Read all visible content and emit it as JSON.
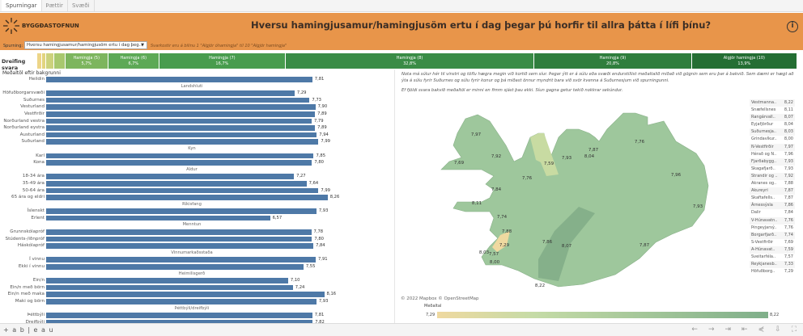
{
  "tabs": [
    {
      "label": "Spurningar"
    },
    {
      "label": "Þættir"
    },
    {
      "label": "Svæði"
    }
  ],
  "header": {
    "logo_text": "BYGGÐASTOFNUN",
    "title": "Hversu hamingjusamur/hamingjusöm ertu í dag þegar þú horfir til allra þátta í lífi þínu?",
    "info_icon": "info-icon",
    "question_label": "Spurning:",
    "question_value": "Hversu hamingjusamur/hamingjusöm ertu í dag þeg...",
    "scale_note": "Svarkostir eru á bilinu 1 \"Algjör óhamingja\" til 10 \"Algjör hamingja\"",
    "background": "#E8954A"
  },
  "distribution": {
    "label": "Dreifing svara",
    "segments": [
      {
        "label": "",
        "pct": "",
        "share": 0.6,
        "color": "#EDD588"
      },
      {
        "label": "",
        "pct": "",
        "share": 0.6,
        "color": "#E2D47E"
      },
      {
        "label": "",
        "pct": "",
        "share": 1.0,
        "color": "#CCD27C"
      },
      {
        "label": "",
        "pct": "",
        "share": 1.5,
        "color": "#A8C86E"
      },
      {
        "label": "Hamingja (5)",
        "pct": "5,7%",
        "share": 5.7,
        "color": "#7DB55E"
      },
      {
        "label": "Hamingja (6)",
        "pct": "6,7%",
        "share": 6.7,
        "color": "#5DA956"
      },
      {
        "label": "Hamingja (7)",
        "pct": "16,7%",
        "share": 16.7,
        "color": "#489C4E"
      },
      {
        "label": "Hamingja (8)",
        "pct": "32,8%",
        "share": 32.8,
        "color": "#3A8C46"
      },
      {
        "label": "Hamingja (9)",
        "pct": "20,8%",
        "share": 20.8,
        "color": "#2F7E3D"
      },
      {
        "label": "Algjör hamingja (10)",
        "pct": "13,9%",
        "share": 13.9,
        "color": "#246E33"
      }
    ]
  },
  "averages": {
    "title": "Meðaltöl eftir bakgrunni",
    "bar_color": "#4E79A7",
    "rows": [
      {
        "label": "Heildin",
        "value": "7,81",
        "v": 7.81
      },
      {
        "group": "Landshluti"
      },
      {
        "label": "Höfuðborgarsvæði",
        "value": "7,29",
        "v": 7.29
      },
      {
        "label": "Suðurnes",
        "value": "7,73",
        "v": 7.73
      },
      {
        "label": "Vesturland",
        "value": "7,90",
        "v": 7.9
      },
      {
        "label": "Vestfirðir",
        "value": "7,89",
        "v": 7.89
      },
      {
        "label": "Norðurland vestra",
        "value": "7,79",
        "v": 7.79
      },
      {
        "label": "Norðurland eystra",
        "value": "7,89",
        "v": 7.89
      },
      {
        "label": "Austurland",
        "value": "7,94",
        "v": 7.94
      },
      {
        "label": "Suðurland",
        "value": "7,99",
        "v": 7.99
      },
      {
        "group": "Kyn"
      },
      {
        "label": "Karl",
        "value": "7,85",
        "v": 7.85
      },
      {
        "label": "Kona",
        "value": "7,80",
        "v": 7.8
      },
      {
        "group": "Aldur"
      },
      {
        "label": "18-34 ára",
        "value": "7,27",
        "v": 7.27
      },
      {
        "label": "35-49 ára",
        "value": "7,64",
        "v": 7.64
      },
      {
        "label": "50-64 ára",
        "value": "7,99",
        "v": 7.99
      },
      {
        "label": "65 ára og eldri",
        "value": "8,26",
        "v": 8.26
      },
      {
        "group": "Ríkisfang"
      },
      {
        "label": "Íslenskt",
        "value": "7,93",
        "v": 7.93
      },
      {
        "label": "Erlent",
        "value": "6,57",
        "v": 6.57
      },
      {
        "group": "Menntun"
      },
      {
        "label": "Grunnskólapróf",
        "value": "7,78",
        "v": 7.78
      },
      {
        "label": "Stúdents-/iðnpróf",
        "value": "7,80",
        "v": 7.8
      },
      {
        "label": "Háskólapróf",
        "value": "7,84",
        "v": 7.84
      },
      {
        "group": "Vinnumarkaðsstaða"
      },
      {
        "label": "Í vinnu",
        "value": "7,91",
        "v": 7.91
      },
      {
        "label": "Ekki í vinnu",
        "value": "7,55",
        "v": 7.55
      },
      {
        "group": "Heimilisgerð"
      },
      {
        "label": "Ein/n",
        "value": "7,10",
        "v": 7.1
      },
      {
        "label": "Ein/n með börn",
        "value": "7,24",
        "v": 7.24
      },
      {
        "label": "Ein/n með maka",
        "value": "8,16",
        "v": 8.16
      },
      {
        "label": "Maki og börn",
        "value": "7,93",
        "v": 7.93
      },
      {
        "group": "Þéttbýli/dreifbýli"
      },
      {
        "label": "Þéttbýli",
        "value": "7,81",
        "v": 7.81
      },
      {
        "label": "Dreifbýli",
        "value": "7,82",
        "v": 7.82
      }
    ]
  },
  "notes": {
    "p1": "Nota má súlur hér til vinstri og töflu hægra megin við kortið sem síur. Þegar ýtt er á súlu eða svæði endurstillist meðaltalið miðað við gögnin sem eru þar á bakvið. Sem dæmi er hægt að ýta á súlu fyrir Suðurnes og súlu fyrir konur og þá miðast önnur myndrit bara við svör kvenna á Suðurnesjum við spurningunni.",
    "p2": "Ef fjöldi svara bakvið meðaltöl er minni en fimm sjást þau ekki. Síun gagna getur tekið nokkrar sekúndur."
  },
  "regions": [
    {
      "name": "Vestmanna..",
      "value": "8,22",
      "v": 8.22
    },
    {
      "name": "Snæfellsnes",
      "value": "8,11",
      "v": 8.11
    },
    {
      "name": "Rangárvall..",
      "value": "8,07",
      "v": 8.07
    },
    {
      "name": "Eyjafjörður",
      "value": "8,04",
      "v": 8.04
    },
    {
      "name": "Suðurnesja..",
      "value": "8,03",
      "v": 8.03
    },
    {
      "name": "Grindavíkur..",
      "value": "8,00",
      "v": 8.0
    },
    {
      "name": "N-Vestfirðir",
      "value": "7,97",
      "v": 7.97
    },
    {
      "name": "Hérað og N..",
      "value": "7,96",
      "v": 7.96
    },
    {
      "name": "Fjarðabygg..",
      "value": "7,93",
      "v": 7.93
    },
    {
      "name": "Skagafjarð..",
      "value": "7,93",
      "v": 7.93
    },
    {
      "name": "Strandir og ..",
      "value": "7,92",
      "v": 7.92
    },
    {
      "name": "Akranes og..",
      "value": "7,88",
      "v": 7.88
    },
    {
      "name": "Akureyri",
      "value": "7,87",
      "v": 7.87
    },
    {
      "name": "Skaftafells..",
      "value": "7,87",
      "v": 7.87
    },
    {
      "name": "Árnessýsla",
      "value": "7,86",
      "v": 7.86
    },
    {
      "name": "Dalir",
      "value": "7,84",
      "v": 7.84
    },
    {
      "name": "V-Húnavatn..",
      "value": "7,76",
      "v": 7.76
    },
    {
      "name": "Þingeyjarsý..",
      "value": "7,76",
      "v": 7.76
    },
    {
      "name": "Borgarfjarð..",
      "value": "7,74",
      "v": 7.74
    },
    {
      "name": "S-Vestfirðir",
      "value": "7,69",
      "v": 7.69
    },
    {
      "name": "A-Húnavat..",
      "value": "7,59",
      "v": 7.59
    },
    {
      "name": "Sveitarféla..",
      "value": "7,57",
      "v": 7.57
    },
    {
      "name": "Reykjanesb..",
      "value": "7,33",
      "v": 7.33
    },
    {
      "name": "Höfuðborg..",
      "value": "7,29",
      "v": 7.29
    }
  ],
  "map": {
    "attribution": "© 2022 Mapbox © OpenStreetMap",
    "legend_title": "Meðaltal",
    "legend_min": "7,29",
    "legend_max": "8,22",
    "color_low": "#EFD9A0",
    "color_high": "#7FAF8A"
  },
  "toolbar": {
    "logo": "+ a b | e a u",
    "icons": [
      "undo-icon",
      "redo-icon",
      "revert-icon",
      "pause-icon",
      "share-icon",
      "download-icon",
      "fullscreen-icon"
    ]
  }
}
